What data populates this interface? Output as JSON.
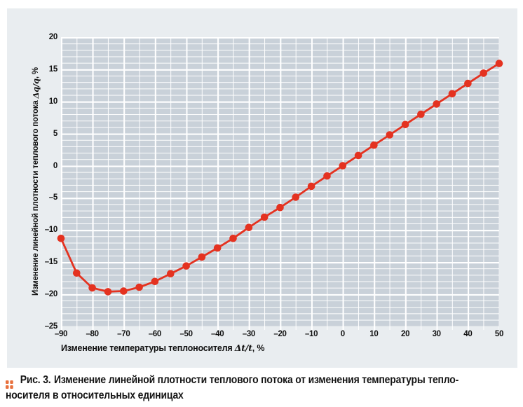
{
  "chart_data": {
    "type": "line",
    "x": [
      -90,
      -85,
      -80,
      -75,
      -70,
      -65,
      -60,
      -55,
      -50,
      -45,
      -40,
      -35,
      -30,
      -25,
      -20,
      -15,
      -10,
      -5,
      0,
      5,
      10,
      15,
      20,
      25,
      30,
      35,
      40,
      45,
      50
    ],
    "y": [
      -11.3,
      -16.7,
      -19.0,
      -19.6,
      -19.5,
      -18.9,
      -18.0,
      -16.8,
      -15.6,
      -14.2,
      -12.8,
      -11.3,
      -9.6,
      -8.0,
      -6.5,
      -4.9,
      -3.2,
      -1.6,
      0,
      1.6,
      3.2,
      4.8,
      6.4,
      8.0,
      9.6,
      11.2,
      12.8,
      14.4,
      15.9
    ],
    "xlim": [
      -90,
      50
    ],
    "ylim": [
      -25,
      20
    ],
    "x_tick_values": [
      -90,
      -80,
      -70,
      -60,
      -50,
      -40,
      -30,
      -20,
      -10,
      0,
      10,
      20,
      30,
      40,
      50
    ],
    "x_tick_labels": [
      "–90",
      "–80",
      "–70",
      "–60",
      "–50",
      "–40",
      "–30",
      "–20",
      "–10",
      "0",
      "10",
      "20",
      "30",
      "40",
      "50"
    ],
    "y_tick_values": [
      20,
      15,
      10,
      5,
      0,
      -5,
      -10,
      -15,
      -20,
      -25
    ],
    "y_tick_labels": [
      "20",
      "15",
      "10",
      "5",
      "0",
      "–5",
      "–10",
      "–15",
      "–20",
      "–25"
    ],
    "xlabel": "Изменение температуры теплоносителя Δt/t, %",
    "ylabel": "Изменение линейной плотности теплового потока Δq/q, %",
    "grid": {
      "minor_x_step": 5,
      "major_x_step": 10,
      "minor_y_step": 1,
      "major_y_step": 5,
      "grid_color": "#ffffff"
    },
    "legend": "none",
    "colors": {
      "line": "#e43220",
      "marker": "#e43220",
      "plot_bg": "#c9d1d9",
      "panel_bg": "#e9edf0"
    }
  },
  "axes": {
    "y_title": {
      "prefix": "Изменение линейной плотности теплового потока ",
      "math": "Δq/q",
      "suffix": ", %"
    },
    "x_title": {
      "prefix": "Изменение температуры теплоносителя ",
      "math": "Δt/t",
      "suffix": ", %"
    }
  },
  "caption": {
    "icon_color": "#e8713e",
    "fig_label": "Рис. 3.",
    "line1": "Изменение линейной плотности теплового потока от изменения температуры тепло-",
    "line2": "носителя в относительных единицах"
  }
}
